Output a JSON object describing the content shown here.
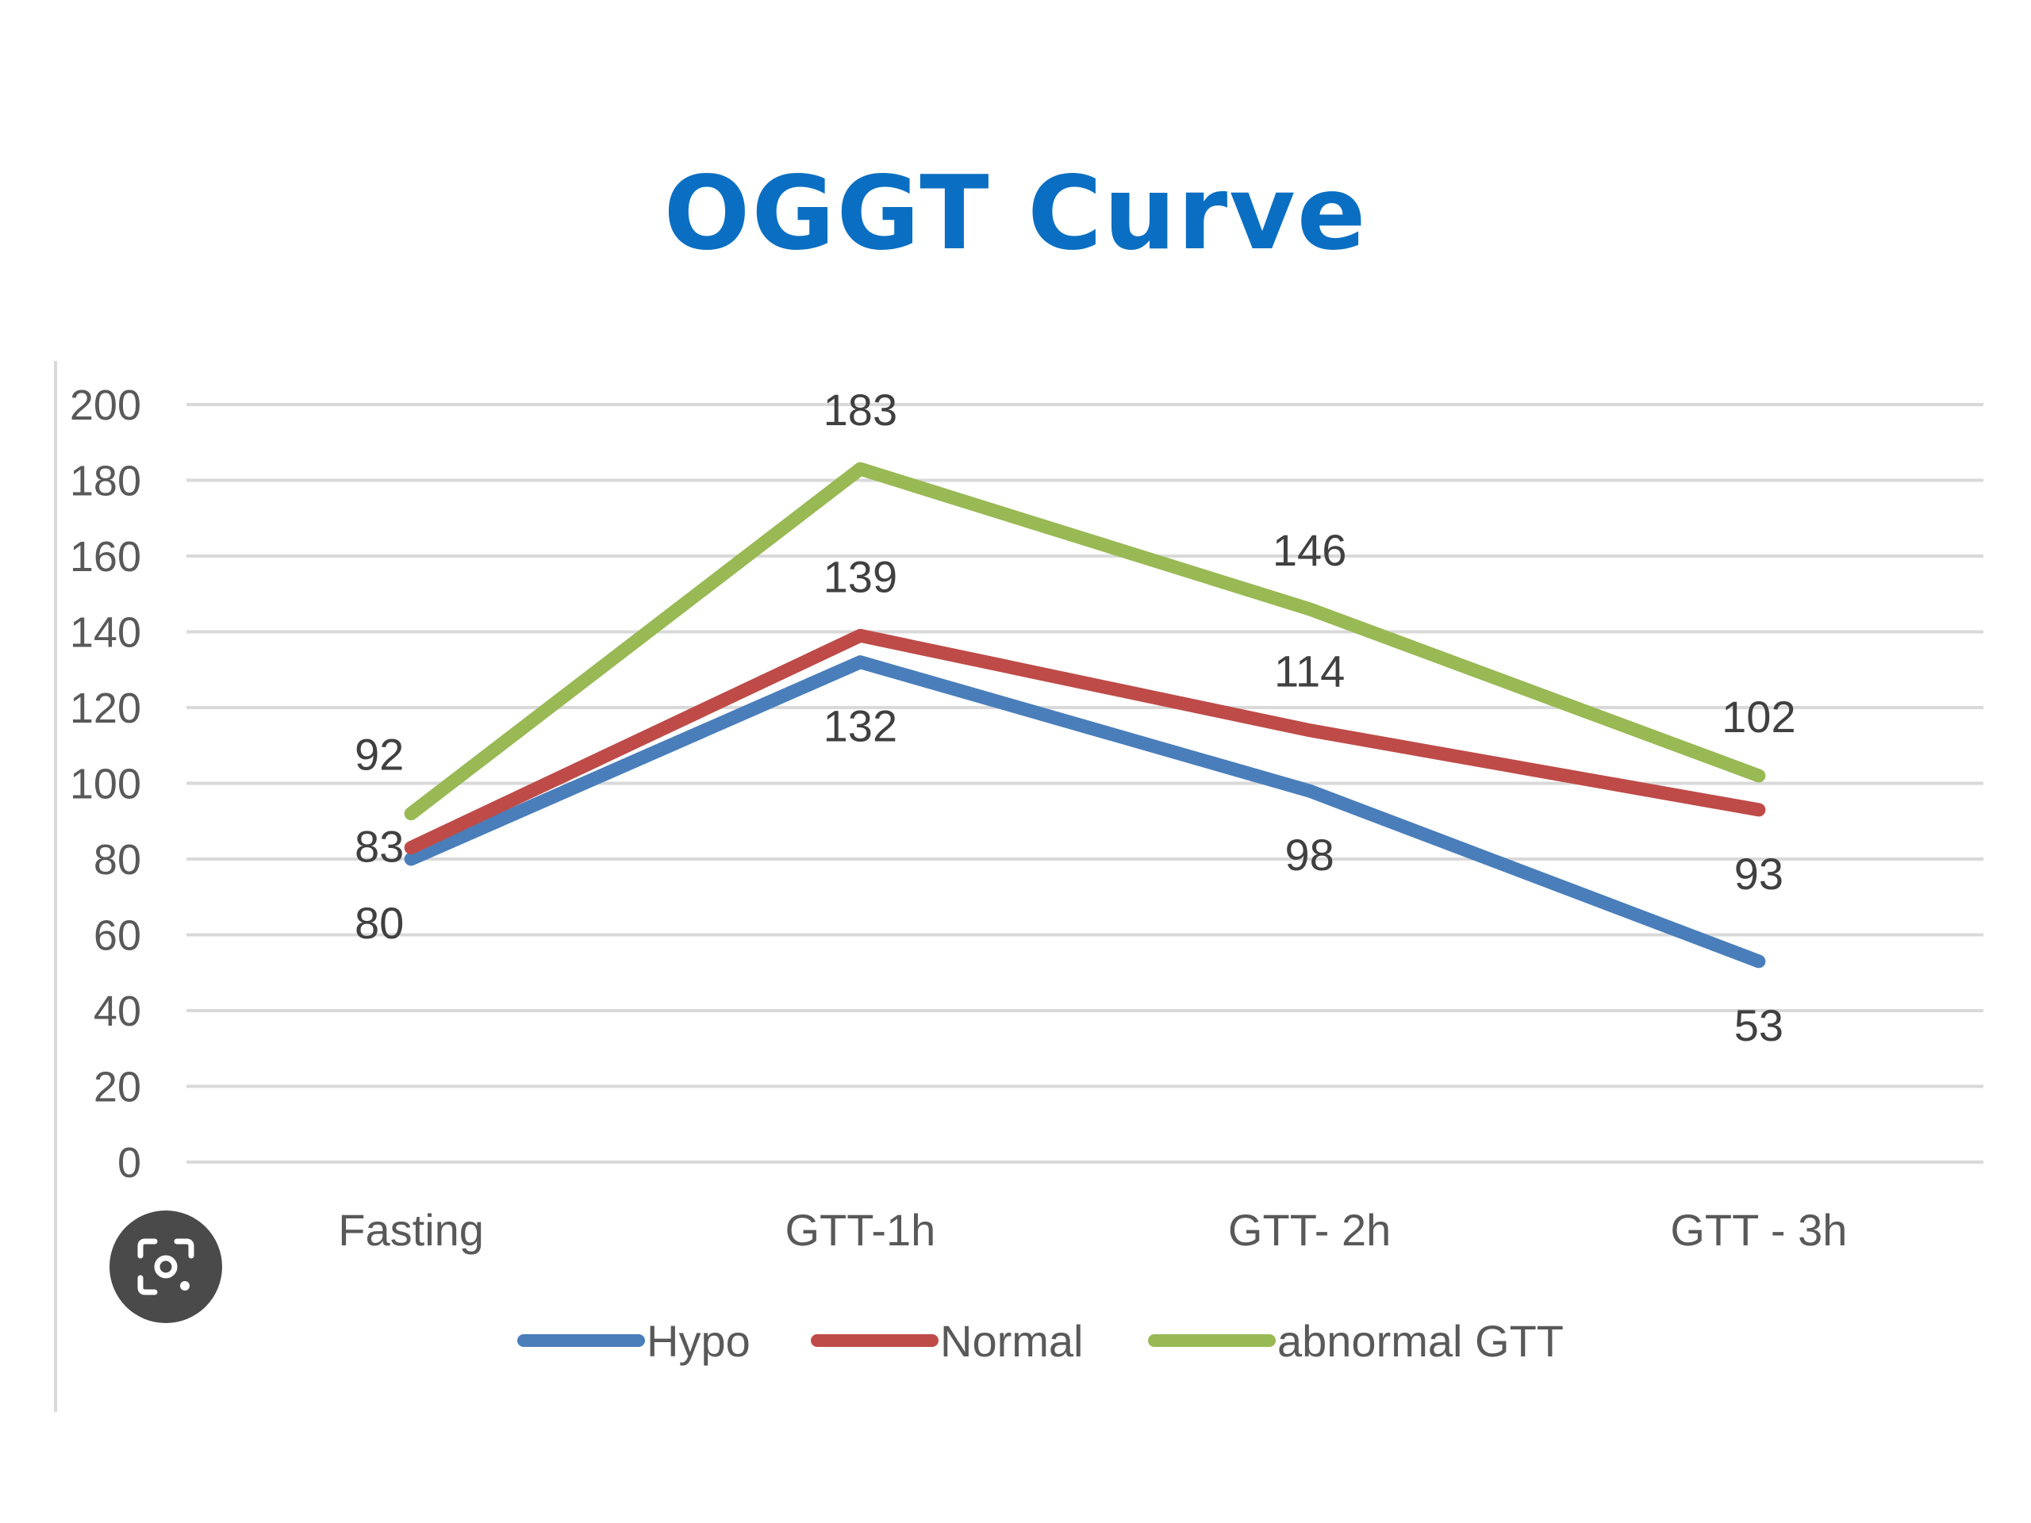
{
  "chart_data": {
    "type": "line",
    "title": "OGGT Curve",
    "title_color": "#0a6fc2",
    "categories": [
      "Fasting",
      "GTT-1h",
      "GTT- 2h",
      "GTT - 3h"
    ],
    "ylim": [
      0,
      200
    ],
    "yticks": [
      0,
      20,
      40,
      60,
      80,
      100,
      120,
      140,
      160,
      180,
      200
    ],
    "grid": true,
    "legend_position": "bottom",
    "series": [
      {
        "name": "Hypo",
        "color": "#4a7ebb",
        "values": [
          80,
          132,
          98,
          53
        ],
        "label_pos": [
          "below",
          "below",
          "below",
          "below"
        ]
      },
      {
        "name": "Normal",
        "color": "#be4b48",
        "values": [
          83,
          139,
          114,
          93
        ],
        "label_pos": [
          "on",
          "above",
          "above",
          "below"
        ]
      },
      {
        "name": "abnormal GTT",
        "color": "#98b954",
        "values": [
          92,
          183,
          146,
          102
        ],
        "label_pos": [
          "above",
          "above",
          "above",
          "above"
        ]
      }
    ]
  },
  "icons": {
    "lens": "lens-search-icon"
  }
}
